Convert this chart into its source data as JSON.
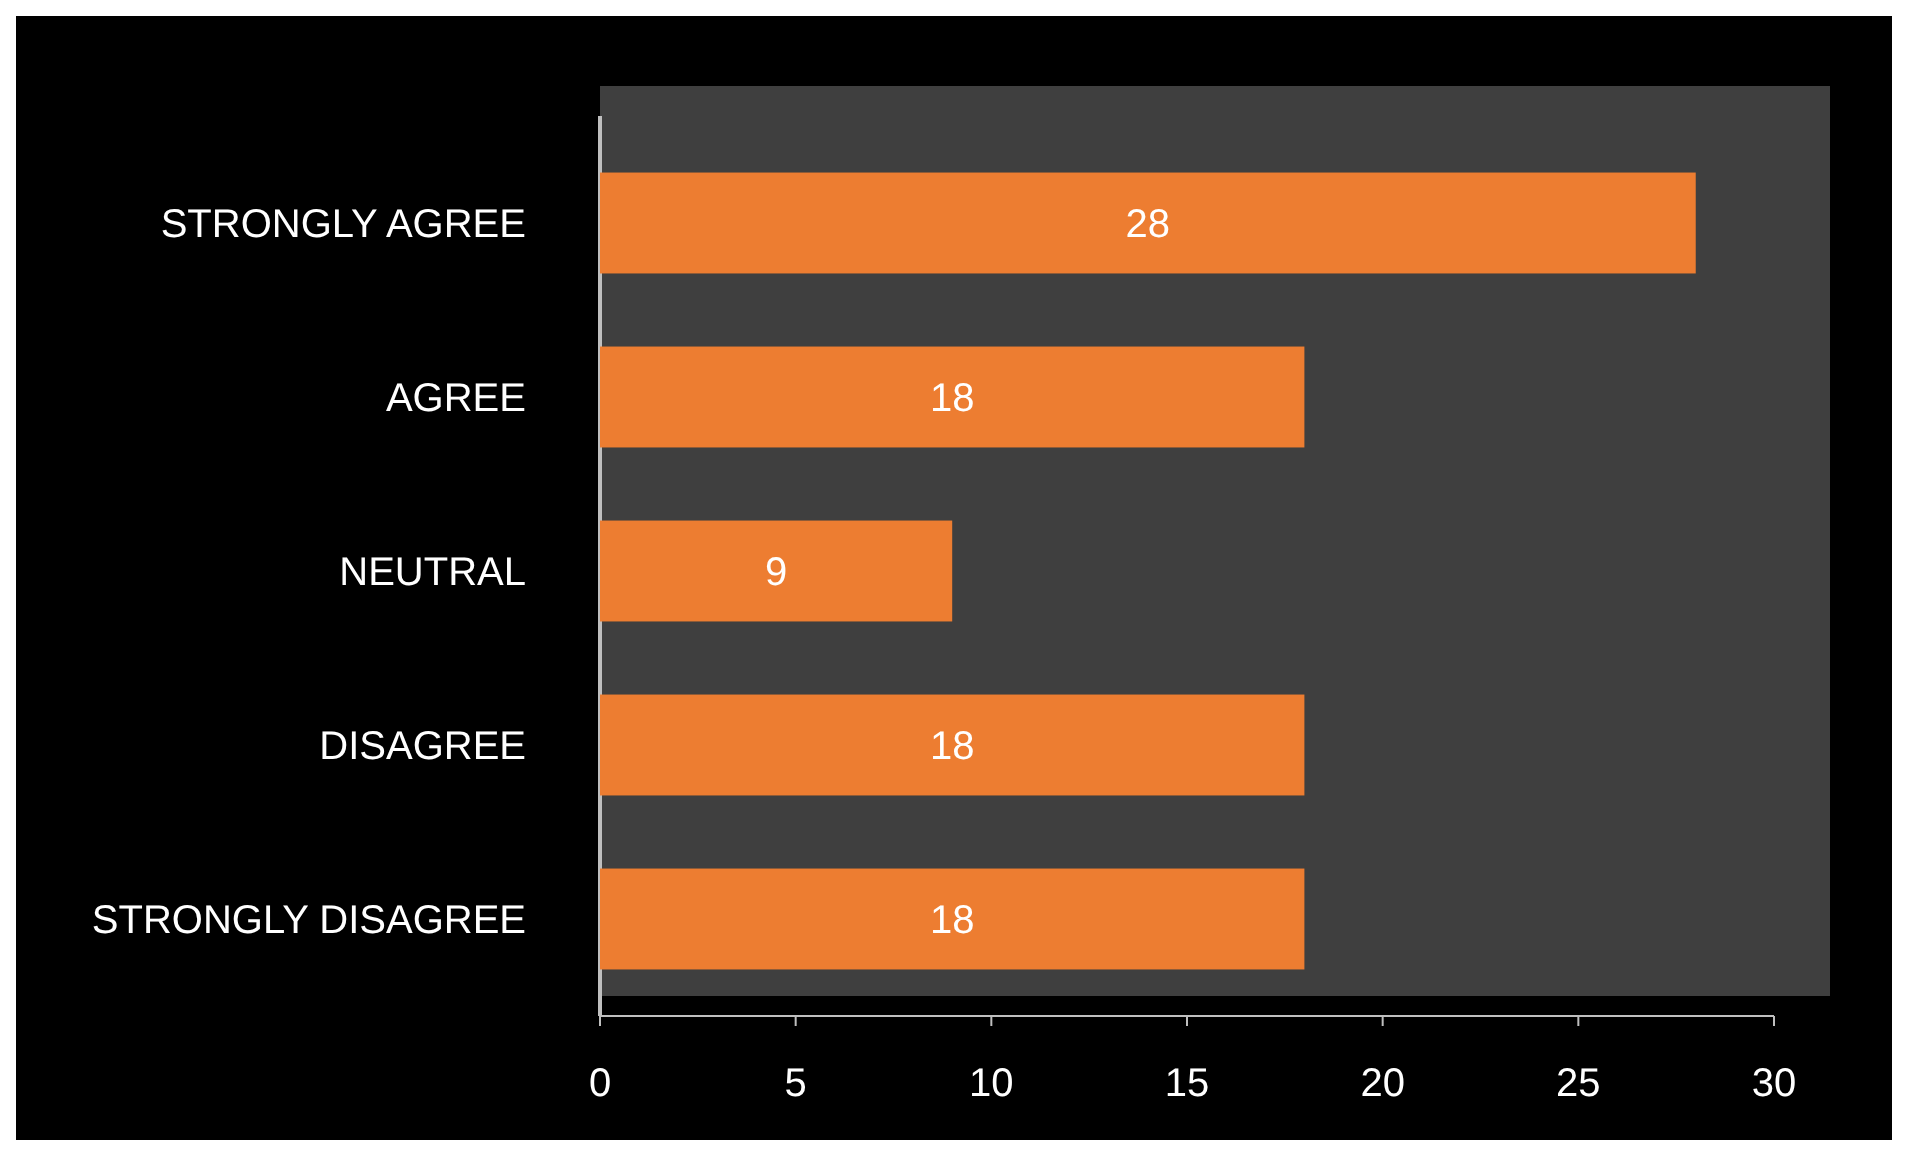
{
  "chart_data": {
    "type": "bar",
    "orientation": "horizontal",
    "categories": [
      "STRONGLY AGREE",
      "AGREE",
      "NEUTRAL",
      "DISAGREE",
      "STRONGLY DISAGREE"
    ],
    "values": [
      28,
      18,
      9,
      18,
      18
    ],
    "color": "#ed7d31",
    "xlim": [
      0,
      30
    ],
    "xticks": [
      0,
      5,
      10,
      15,
      20,
      25,
      30
    ],
    "data_labels": true,
    "grid": false
  }
}
